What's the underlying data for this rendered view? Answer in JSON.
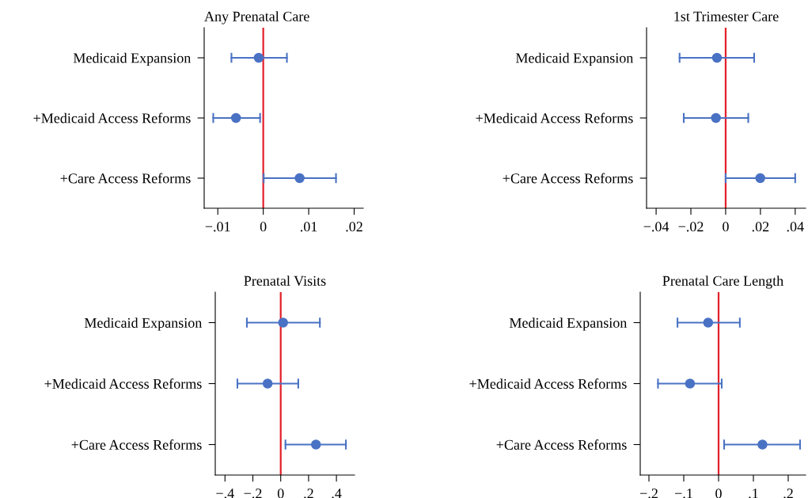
{
  "chart_data": [
    {
      "type": "scatter",
      "orientation": "horizontal",
      "title": "Any Prenatal Care",
      "categories": [
        "Medicaid Expansion",
        "+Medicaid Access Reforms",
        "+Care Access Reforms"
      ],
      "color": "#4a72c4",
      "values": [
        -0.001,
        -0.006,
        0.008
      ],
      "errors": [
        [
          -0.007,
          0.0052
        ],
        [
          -0.011,
          -0.0007
        ],
        [
          0.0001,
          0.016
        ]
      ],
      "xlim": [
        -0.013,
        0.022
      ],
      "xticks": [
        {
          "value": -0.01,
          "label": "−.01"
        },
        {
          "value": 0,
          "label": "0"
        },
        {
          "value": 0.01,
          "label": ".01"
        },
        {
          "value": 0.02,
          "label": ".02"
        }
      ],
      "ref_lines": [
        {
          "axis": "x",
          "value": 0,
          "color": "#e3202a"
        }
      ],
      "marker": "circle",
      "grid": false,
      "legend": false
    },
    {
      "type": "scatter",
      "orientation": "horizontal",
      "title": "1st Trimester Care",
      "categories": [
        "Medicaid Expansion",
        "+Medicaid Access Reforms",
        "+Care Access Reforms"
      ],
      "color": "#4a72c4",
      "values": [
        -0.005,
        -0.0056,
        0.0199
      ],
      "errors": [
        [
          -0.0265,
          0.0164
        ],
        [
          -0.0241,
          0.013
        ],
        [
          0.0,
          0.04
        ]
      ],
      "xlim": [
        -0.0455,
        0.046
      ],
      "xticks": [
        {
          "value": -0.04,
          "label": "−.04"
        },
        {
          "value": -0.02,
          "label": "−.02"
        },
        {
          "value": 0,
          "label": "0"
        },
        {
          "value": 0.02,
          "label": ".02"
        },
        {
          "value": 0.04,
          "label": ".04"
        }
      ],
      "ref_lines": [
        {
          "axis": "x",
          "value": 0,
          "color": "#e3202a"
        }
      ],
      "marker": "circle",
      "grid": false,
      "legend": false
    },
    {
      "type": "scatter",
      "orientation": "horizontal",
      "title": "Prenatal Visits",
      "categories": [
        "Medicaid Expansion",
        "+Medicaid Access Reforms",
        "+Care Access Reforms"
      ],
      "color": "#4a72c4",
      "values": [
        0.017,
        -0.094,
        0.253
      ],
      "errors": [
        [
          -0.243,
          0.281
        ],
        [
          -0.311,
          0.126
        ],
        [
          0.034,
          0.468
        ]
      ],
      "xlim": [
        -0.47,
        0.53
      ],
      "xticks": [
        {
          "value": -0.4,
          "label": "−.4"
        },
        {
          "value": -0.2,
          "label": "−.2"
        },
        {
          "value": 0,
          "label": "0"
        },
        {
          "value": 0.2,
          "label": ".2"
        },
        {
          "value": 0.4,
          "label": ".4"
        }
      ],
      "ref_lines": [
        {
          "axis": "x",
          "value": 0,
          "color": "#e3202a"
        }
      ],
      "marker": "circle",
      "grid": false,
      "legend": false
    },
    {
      "type": "scatter",
      "orientation": "horizontal",
      "title": "Prenatal Care Length",
      "categories": [
        "Medicaid Expansion",
        "+Medicaid Access Reforms",
        "+Care Access Reforms"
      ],
      "color": "#4a72c4",
      "values": [
        -0.03,
        -0.082,
        0.126
      ],
      "errors": [
        [
          -0.118,
          0.061
        ],
        [
          -0.174,
          0.009
        ],
        [
          0.016,
          0.234
        ]
      ],
      "xlim": [
        -0.225,
        0.25
      ],
      "xticks": [
        {
          "value": -0.2,
          "label": "−.2"
        },
        {
          "value": -0.1,
          "label": "−.1"
        },
        {
          "value": 0,
          "label": "0"
        },
        {
          "value": 0.1,
          "label": ".1"
        },
        {
          "value": 0.2,
          "label": ".2"
        }
      ],
      "ref_lines": [
        {
          "axis": "x",
          "value": 0,
          "color": "#e3202a"
        }
      ],
      "marker": "circle",
      "grid": false,
      "legend": false
    }
  ]
}
